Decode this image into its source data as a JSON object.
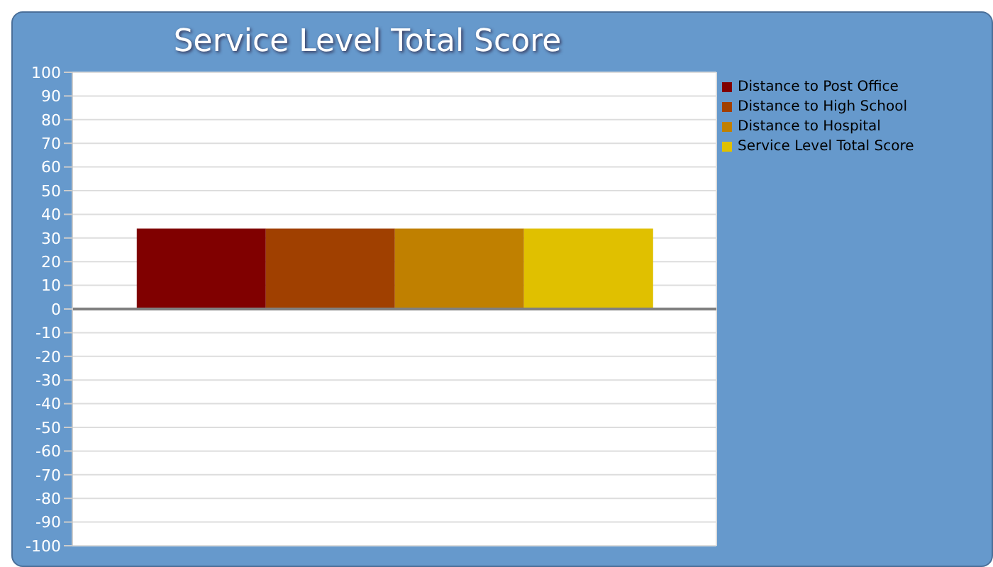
{
  "chart_data": {
    "type": "bar",
    "title": "Service Level Total Score",
    "categories": [
      null
    ],
    "series": [
      {
        "name": "Distance to Post Office",
        "color": "#800000",
        "values": [
          34
        ]
      },
      {
        "name": "Distance to High School",
        "color": "#a04000",
        "values": [
          34
        ]
      },
      {
        "name": "Distance to Hospital",
        "color": "#c08000",
        "values": [
          34
        ]
      },
      {
        "name": "Service Level Total Score",
        "color": "#e0c000",
        "values": [
          34
        ]
      }
    ],
    "ylim": [
      -100,
      100
    ],
    "yticks": [
      -100,
      -90,
      -80,
      -70,
      -60,
      -50,
      -40,
      -30,
      -20,
      -10,
      0,
      10,
      20,
      30,
      40,
      50,
      60,
      70,
      80,
      90,
      100
    ],
    "grid": true,
    "legend": "top right",
    "ref_lines": [
      {
        "axis": "y",
        "value": 0,
        "color": "#808080"
      }
    ]
  }
}
